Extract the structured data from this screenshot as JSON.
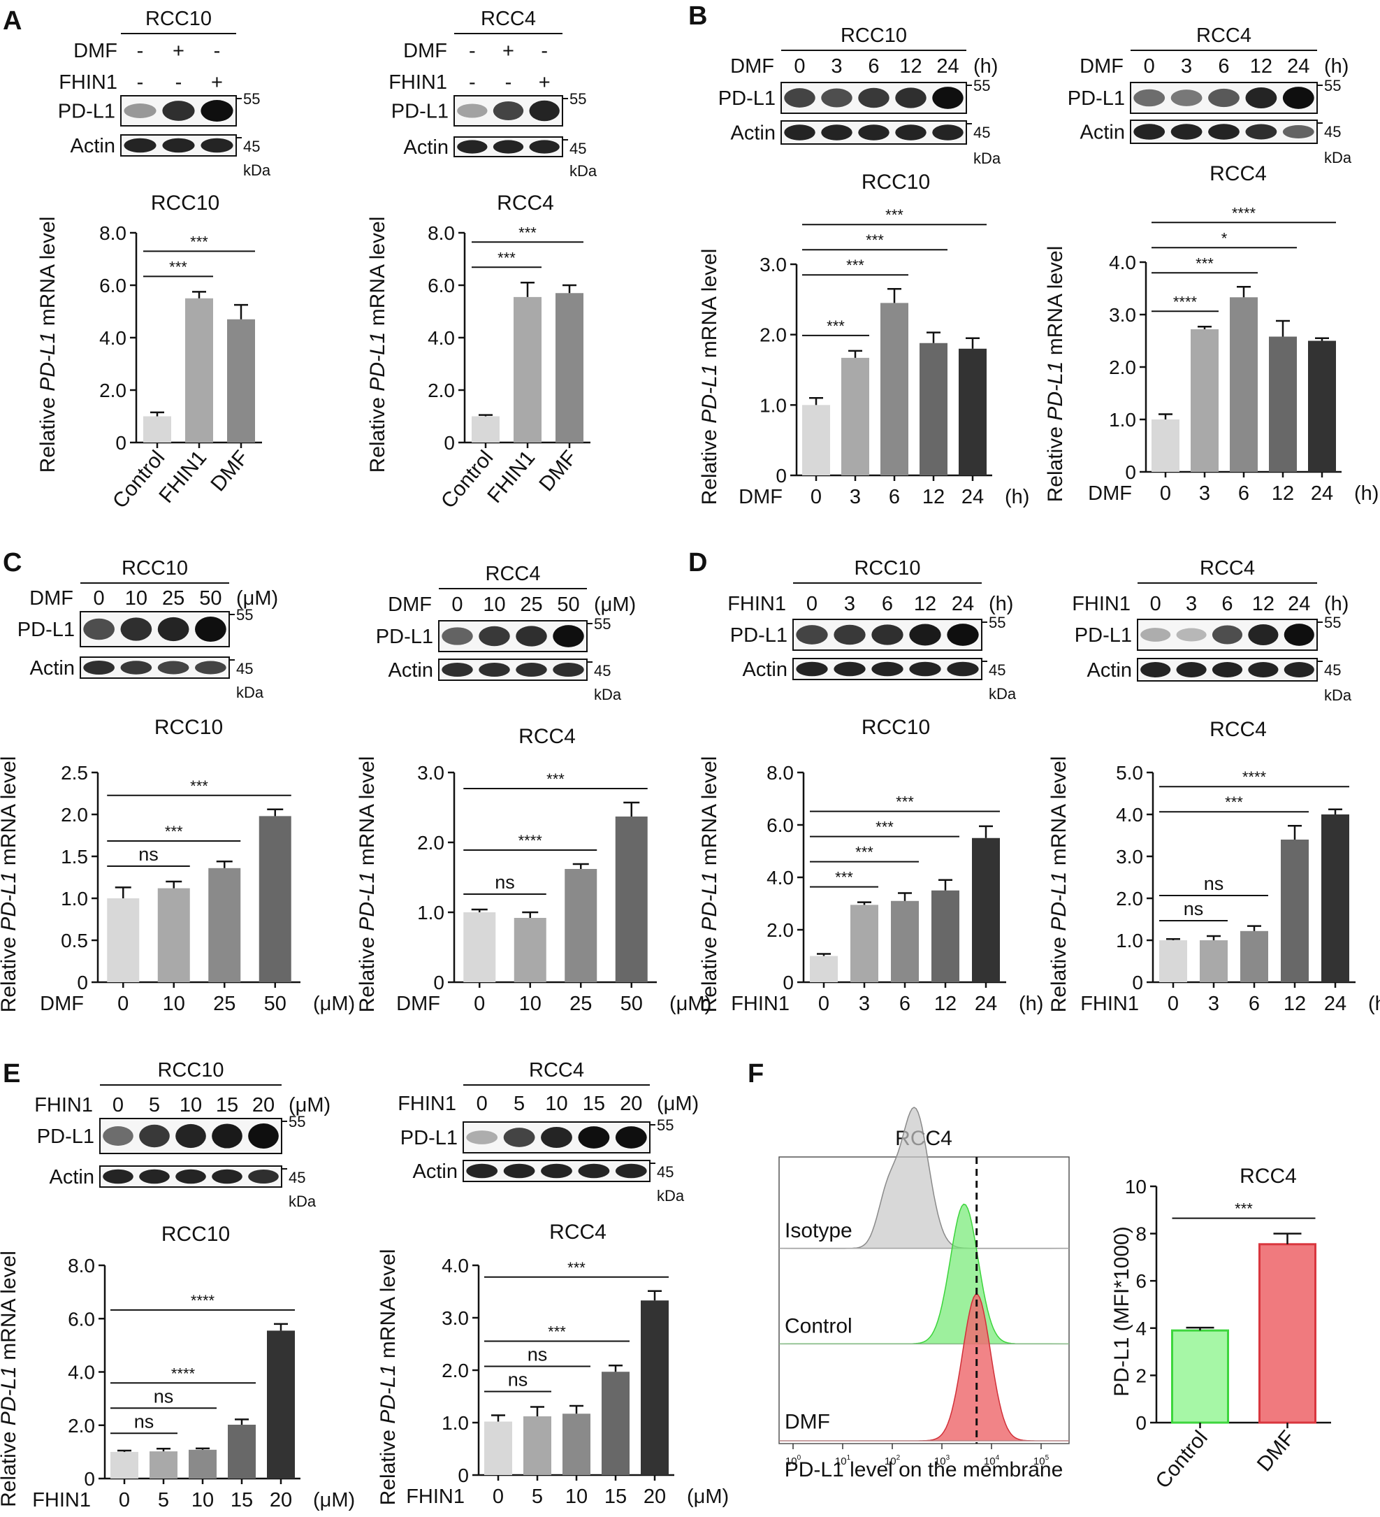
{
  "figure": {
    "note": "Multi-panel figure: Western blots of PD-L1/Actin and qPCR bar charts of relative PD-L1 mRNA level in RCC10 and RCC4 cells treated with DMF or FHIN1; flow cytometry of membrane PD-L1."
  },
  "labels": {
    "units": "kDa",
    "mw_55": "55",
    "mw_45": "45",
    "pdl1": "PD-L1",
    "actin": "Actin",
    "ylabel_pre": "Relative ",
    "ylabel_gene": "PD-L1",
    "ylabel_post": " mRNA level"
  },
  "colors": {
    "grey_scale": [
      "#d8d8d8",
      "#a9a9a9",
      "#8a8a8a",
      "#686868",
      "#333333"
    ],
    "flow_green": "#74ea74",
    "flow_red": "#ee6e72"
  },
  "chart_data": [
    {
      "id": "A1",
      "panel": "A",
      "type": "bar",
      "title": "RCC10",
      "categories": [
        "Control",
        "FHIN1",
        "DMF"
      ],
      "values": [
        1.0,
        5.5,
        4.7
      ],
      "errors": [
        0.15,
        0.25,
        0.55
      ],
      "ylim": [
        0,
        8
      ],
      "yticks": [
        "0",
        "2.0",
        "4.0",
        "6.0",
        "8.0"
      ],
      "ylabel": "Relative PD-L1 mRNA level",
      "xprefix": "",
      "xunit": "",
      "rotate_labels": true,
      "sig": [
        {
          "from": 0,
          "to": 1,
          "label": "***"
        },
        {
          "from": 0,
          "to": 2,
          "label": "***"
        }
      ],
      "blot": {
        "cell": "RCC10",
        "rows": [
          {
            "name": "DMF",
            "vals": [
              "-",
              "+",
              "-"
            ]
          },
          {
            "name": "FHIN1",
            "vals": [
              "-",
              "-",
              "+"
            ]
          }
        ],
        "pdl1": [
          0.35,
          0.85,
          1.0
        ],
        "actin": [
          0.9,
          0.9,
          0.9
        ]
      }
    },
    {
      "id": "A2",
      "panel": "",
      "type": "bar",
      "title": "RCC4",
      "categories": [
        "Control",
        "FHIN1",
        "DMF"
      ],
      "values": [
        1.0,
        5.55,
        5.7
      ],
      "errors": [
        0.05,
        0.55,
        0.3
      ],
      "ylim": [
        0,
        8
      ],
      "yticks": [
        "0",
        "2.0",
        "4.0",
        "6.0",
        "8.0"
      ],
      "ylabel": "Relative PD-L1 mRNA level",
      "xprefix": "",
      "xunit": "",
      "rotate_labels": true,
      "sig": [
        {
          "from": 0,
          "to": 1,
          "label": "***"
        },
        {
          "from": 0,
          "to": 2,
          "label": "***"
        }
      ],
      "blot": {
        "cell": "RCC4",
        "rows": [
          {
            "name": "DMF",
            "vals": [
              "-",
              "+",
              "-"
            ]
          },
          {
            "name": "FHIN1",
            "vals": [
              "-",
              "-",
              "+"
            ]
          }
        ],
        "pdl1": [
          0.3,
          0.75,
          0.9
        ],
        "actin": [
          0.9,
          0.9,
          0.9
        ]
      }
    },
    {
      "id": "B1",
      "panel": "B",
      "type": "bar",
      "title": "RCC10",
      "categories": [
        "0",
        "3",
        "6",
        "12",
        "24"
      ],
      "values": [
        1.0,
        1.67,
        2.45,
        1.88,
        1.8
      ],
      "errors": [
        0.1,
        0.1,
        0.2,
        0.15,
        0.15
      ],
      "ylim": [
        0,
        3
      ],
      "yticks": [
        "0",
        "1.0",
        "2.0",
        "3.0"
      ],
      "ylabel": "Relative PD-L1 mRNA level",
      "xprefix": "DMF",
      "xunit": "(h)",
      "rotate_labels": false,
      "sig": [
        {
          "from": 0,
          "to": 1,
          "label": "***"
        },
        {
          "from": 0,
          "to": 2,
          "label": "***"
        },
        {
          "from": 0,
          "to": 3,
          "label": "***"
        },
        {
          "from": 0,
          "to": 4,
          "label": "***"
        }
      ],
      "blot": {
        "cell": "RCC10",
        "rows": [
          {
            "name": "DMF",
            "vals": [
              "0",
              "3",
              "6",
              "12",
              "24"
            ],
            "unit": "(h)"
          }
        ],
        "pdl1": [
          0.75,
          0.7,
          0.8,
          0.85,
          1.0
        ],
        "actin": [
          0.9,
          0.9,
          0.9,
          0.9,
          0.9
        ]
      }
    },
    {
      "id": "B2",
      "panel": "",
      "type": "bar",
      "title": "RCC4",
      "categories": [
        "0",
        "3",
        "6",
        "12",
        "24"
      ],
      "values": [
        1.0,
        2.72,
        3.33,
        2.58,
        2.5
      ],
      "errors": [
        0.1,
        0.05,
        0.2,
        0.3,
        0.05
      ],
      "ylim": [
        0,
        4
      ],
      "yticks": [
        "0",
        "1.0",
        "2.0",
        "3.0",
        "4.0"
      ],
      "ylabel": "Relative PD-L1 mRNA level",
      "xprefix": "DMF",
      "xunit": "(h)",
      "rotate_labels": false,
      "sig": [
        {
          "from": 0,
          "to": 1,
          "label": "****"
        },
        {
          "from": 0,
          "to": 2,
          "label": "***"
        },
        {
          "from": 0,
          "to": 3,
          "label": "*"
        },
        {
          "from": 0,
          "to": 4,
          "label": "****"
        }
      ],
      "blot": {
        "cell": "RCC4",
        "rows": [
          {
            "name": "DMF",
            "vals": [
              "0",
              "3",
              "6",
              "12",
              "24"
            ],
            "unit": "(h)"
          }
        ],
        "pdl1": [
          0.55,
          0.5,
          0.65,
          0.9,
          1.0
        ],
        "actin": [
          0.9,
          0.9,
          0.9,
          0.85,
          0.6
        ]
      }
    },
    {
      "id": "C1",
      "panel": "C",
      "type": "bar",
      "title": "RCC10",
      "categories": [
        "0",
        "10",
        "25",
        "50"
      ],
      "values": [
        1.0,
        1.12,
        1.36,
        1.98
      ],
      "errors": [
        0.13,
        0.08,
        0.08,
        0.08
      ],
      "ylim": [
        0,
        2.5
      ],
      "yticks": [
        "0",
        "0.5",
        "1.0",
        "1.5",
        "2.0",
        "2.5"
      ],
      "ylabel": "Relative PD-L1 mRNA level",
      "xprefix": "DMF",
      "xunit": "(μM)",
      "rotate_labels": false,
      "sig": [
        {
          "from": 0,
          "to": 1,
          "label": "ns"
        },
        {
          "from": 0,
          "to": 2,
          "label": "***"
        },
        {
          "from": 0,
          "to": 3,
          "label": "***"
        }
      ],
      "blot": {
        "cell": "RCC10",
        "rows": [
          {
            "name": "DMF",
            "vals": [
              "0",
              "10",
              "25",
              "50"
            ],
            "unit": "(μM)"
          }
        ],
        "pdl1": [
          0.7,
          0.85,
          0.9,
          1.0
        ],
        "actin": [
          0.85,
          0.8,
          0.75,
          0.75
        ]
      }
    },
    {
      "id": "C2",
      "panel": "",
      "type": "bar",
      "title": "RCC4",
      "categories": [
        "0",
        "10",
        "25",
        "50"
      ],
      "values": [
        1.0,
        0.92,
        1.62,
        2.37
      ],
      "errors": [
        0.04,
        0.08,
        0.07,
        0.2
      ],
      "ylim": [
        0,
        3
      ],
      "yticks": [
        "0",
        "1.0",
        "2.0",
        "3.0"
      ],
      "ylabel": "Relative PD-L1 mRNA level",
      "xprefix": "DMF",
      "xunit": "(μM)",
      "rotate_labels": false,
      "sig": [
        {
          "from": 0,
          "to": 1,
          "label": "ns"
        },
        {
          "from": 0,
          "to": 2,
          "label": "****"
        },
        {
          "from": 0,
          "to": 3,
          "label": "***"
        }
      ],
      "blot": {
        "cell": "RCC4",
        "rows": [
          {
            "name": "DMF",
            "vals": [
              "0",
              "10",
              "25",
              "50"
            ],
            "unit": "(μM)"
          }
        ],
        "pdl1": [
          0.6,
          0.8,
          0.85,
          1.0
        ],
        "actin": [
          0.85,
          0.85,
          0.85,
          0.85
        ]
      }
    },
    {
      "id": "D1",
      "panel": "D",
      "type": "bar",
      "title": "RCC10",
      "categories": [
        "0",
        "3",
        "6",
        "12",
        "24"
      ],
      "values": [
        1.0,
        2.95,
        3.1,
        3.5,
        5.5
      ],
      "errors": [
        0.08,
        0.1,
        0.3,
        0.4,
        0.45
      ],
      "ylim": [
        0,
        8
      ],
      "yticks": [
        "0",
        "2.0",
        "4.0",
        "6.0",
        "8.0"
      ],
      "ylabel": "Relative PD-L1 mRNA level",
      "xprefix": "FHIN1",
      "xunit": "(h)",
      "rotate_labels": false,
      "sig": [
        {
          "from": 0,
          "to": 1,
          "label": "***"
        },
        {
          "from": 0,
          "to": 2,
          "label": "***"
        },
        {
          "from": 0,
          "to": 3,
          "label": "***"
        },
        {
          "from": 0,
          "to": 4,
          "label": "***"
        }
      ],
      "blot": {
        "cell": "RCC10",
        "rows": [
          {
            "name": "FHIN1",
            "vals": [
              "0",
              "3",
              "6",
              "12",
              "24"
            ],
            "unit": "(h)"
          }
        ],
        "pdl1": [
          0.75,
          0.8,
          0.85,
          0.95,
          1.0
        ],
        "actin": [
          0.9,
          0.9,
          0.9,
          0.9,
          0.9
        ]
      }
    },
    {
      "id": "D2",
      "panel": "",
      "type": "bar",
      "title": "RCC4",
      "categories": [
        "0",
        "3",
        "6",
        "12",
        "24"
      ],
      "values": [
        1.0,
        1.0,
        1.22,
        3.4,
        4.0
      ],
      "errors": [
        0.03,
        0.1,
        0.12,
        0.33,
        0.12
      ],
      "ylim": [
        0,
        5
      ],
      "yticks": [
        "0",
        "1.0",
        "2.0",
        "3.0",
        "4.0",
        "5.0"
      ],
      "ylabel": "Relative PD-L1 mRNA level",
      "xprefix": "FHIN1",
      "xunit": "(h)",
      "rotate_labels": false,
      "sig": [
        {
          "from": 0,
          "to": 1,
          "label": "ns"
        },
        {
          "from": 0,
          "to": 2,
          "label": "ns"
        },
        {
          "from": 0,
          "to": 3,
          "label": "***"
        },
        {
          "from": 0,
          "to": 4,
          "label": "****"
        }
      ],
      "blot": {
        "cell": "RCC4",
        "rows": [
          {
            "name": "FHIN1",
            "vals": [
              "0",
              "3",
              "6",
              "12",
              "24"
            ],
            "unit": "(h)"
          }
        ],
        "pdl1": [
          0.25,
          0.2,
          0.7,
          0.9,
          1.0
        ],
        "actin": [
          0.9,
          0.9,
          0.9,
          0.9,
          0.9
        ]
      }
    },
    {
      "id": "E1",
      "panel": "E",
      "type": "bar",
      "title": "RCC10",
      "categories": [
        "0",
        "5",
        "10",
        "15",
        "20"
      ],
      "values": [
        1.0,
        1.02,
        1.08,
        2.02,
        5.55
      ],
      "errors": [
        0.05,
        0.1,
        0.05,
        0.2,
        0.25
      ],
      "ylim": [
        0,
        8
      ],
      "yticks": [
        "0",
        "2.0",
        "4.0",
        "6.0",
        "8.0"
      ],
      "ylabel": "Relative PD-L1 mRNA level",
      "xprefix": "FHIN1",
      "xunit": "(μM)",
      "rotate_labels": false,
      "sig": [
        {
          "from": 0,
          "to": 1,
          "label": "ns"
        },
        {
          "from": 0,
          "to": 2,
          "label": "ns"
        },
        {
          "from": 0,
          "to": 3,
          "label": "****"
        },
        {
          "from": 0,
          "to": 4,
          "label": "****"
        }
      ],
      "blot": {
        "cell": "RCC10",
        "rows": [
          {
            "name": "FHIN1",
            "vals": [
              "0",
              "5",
              "10",
              "15",
              "20"
            ],
            "unit": "(μM)"
          }
        ],
        "pdl1": [
          0.55,
          0.8,
          0.9,
          0.95,
          1.0
        ],
        "actin": [
          0.9,
          0.9,
          0.9,
          0.9,
          0.85
        ]
      }
    },
    {
      "id": "E2",
      "panel": "",
      "type": "bar",
      "title": "RCC4",
      "categories": [
        "0",
        "5",
        "10",
        "15",
        "20"
      ],
      "values": [
        1.02,
        1.12,
        1.17,
        1.97,
        3.33
      ],
      "errors": [
        0.12,
        0.18,
        0.15,
        0.12,
        0.18
      ],
      "ylim": [
        0,
        4
      ],
      "yticks": [
        "0",
        "1.0",
        "2.0",
        "3.0",
        "4.0"
      ],
      "ylabel": "Relative PD-L1 mRNA level",
      "xprefix": "FHIN1",
      "xunit": "(μM)",
      "rotate_labels": false,
      "sig": [
        {
          "from": 0,
          "to": 1,
          "label": "ns"
        },
        {
          "from": 0,
          "to": 2,
          "label": "ns"
        },
        {
          "from": 0,
          "to": 3,
          "label": "***"
        },
        {
          "from": 0,
          "to": 4,
          "label": "***"
        }
      ],
      "blot": {
        "cell": "RCC4",
        "rows": [
          {
            "name": "FHIN1",
            "vals": [
              "0",
              "5",
              "10",
              "15",
              "20"
            ],
            "unit": "(μM)"
          }
        ],
        "pdl1": [
          0.25,
          0.75,
          0.9,
          1.0,
          1.0
        ],
        "actin": [
          0.9,
          0.9,
          0.9,
          0.9,
          0.9
        ]
      }
    },
    {
      "id": "F2",
      "panel": "",
      "type": "bar",
      "title": "RCC4",
      "categories": [
        "Control",
        "DMF"
      ],
      "values": [
        3.9,
        7.55
      ],
      "errors": [
        0.12,
        0.45
      ],
      "ylim": [
        0,
        10
      ],
      "yticks": [
        "0",
        "2",
        "4",
        "6",
        "8",
        "10"
      ],
      "ylabel": "PD-L1 (MFI*1000)",
      "xprefix": "",
      "xunit": "",
      "rotate_labels": true,
      "colors": [
        "#a6f7a6",
        "#f07a7e"
      ],
      "edges": [
        "#3dd63d",
        "#d9363e"
      ],
      "sig": [
        {
          "from": 0,
          "to": 1,
          "label": "***"
        }
      ]
    }
  ],
  "flow": {
    "panel": "F",
    "title": "RCC4",
    "xlabel": "PD-L1 level on the membrane",
    "xticks": [
      "10",
      "10",
      "10",
      "10",
      "10",
      "10"
    ],
    "xtick_exp": [
      "0",
      "1",
      "2",
      "3",
      "4",
      "5"
    ],
    "rows": [
      "Isotype",
      "Control",
      "DMF"
    ],
    "peaks_log10": [
      2.45,
      3.45,
      3.7
    ]
  }
}
